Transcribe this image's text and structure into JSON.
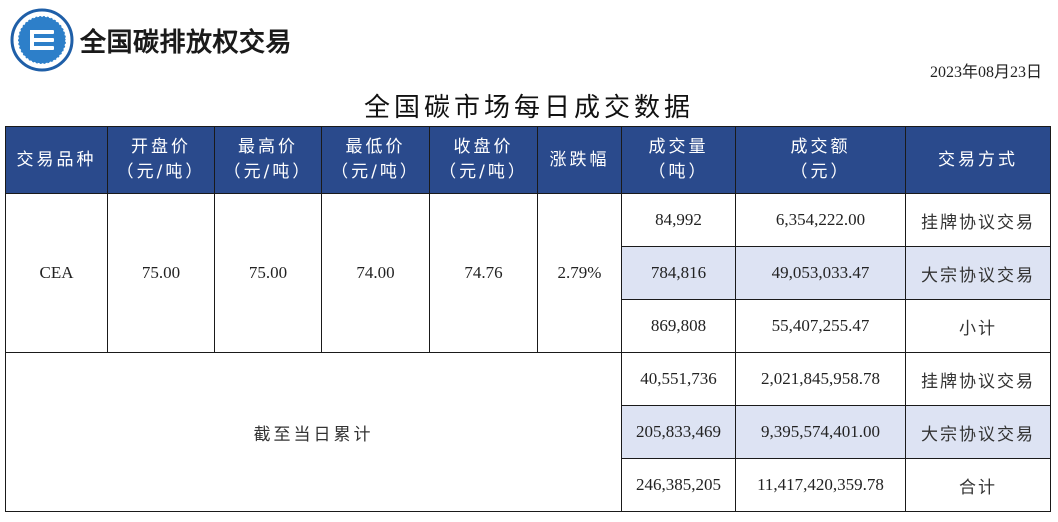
{
  "brand": {
    "name": "全国碳排放权交易"
  },
  "date": "2023年08月23日",
  "title": "全国碳市场每日成交数据",
  "colors": {
    "header_bg": "#2a4a8c",
    "highlight_bg": "#dde3f3"
  },
  "headers": {
    "product": "交易品种",
    "open_l1": "开盘价",
    "open_l2": "（元/吨）",
    "high_l1": "最高价",
    "high_l2": "（元/吨）",
    "low_l1": "最低价",
    "low_l2": "（元/吨）",
    "close_l1": "收盘价",
    "close_l2": "（元/吨）",
    "change": "涨跌幅",
    "volume_l1": "成交量",
    "volume_l2": "（吨）",
    "amount_l1": "成交额",
    "amount_l2": "（元）",
    "mode": "交易方式"
  },
  "daily": {
    "product": "CEA",
    "open": "75.00",
    "high": "75.00",
    "low": "74.00",
    "close": "74.76",
    "change": "2.79%",
    "rows": [
      {
        "volume": "84,992",
        "amount": "6,354,222.00",
        "mode": "挂牌协议交易"
      },
      {
        "volume": "784,816",
        "amount": "49,053,033.47",
        "mode": "大宗协议交易"
      },
      {
        "volume": "869,808",
        "amount": "55,407,255.47",
        "mode": "小计"
      }
    ]
  },
  "cumulative": {
    "label": "截至当日累计",
    "rows": [
      {
        "volume": "40,551,736",
        "amount": "2,021,845,958.78",
        "mode": "挂牌协议交易"
      },
      {
        "volume": "205,833,469",
        "amount": "9,395,574,401.00",
        "mode": "大宗协议交易"
      },
      {
        "volume": "246,385,205",
        "amount": "11,417,420,359.78",
        "mode": "合计"
      }
    ]
  }
}
